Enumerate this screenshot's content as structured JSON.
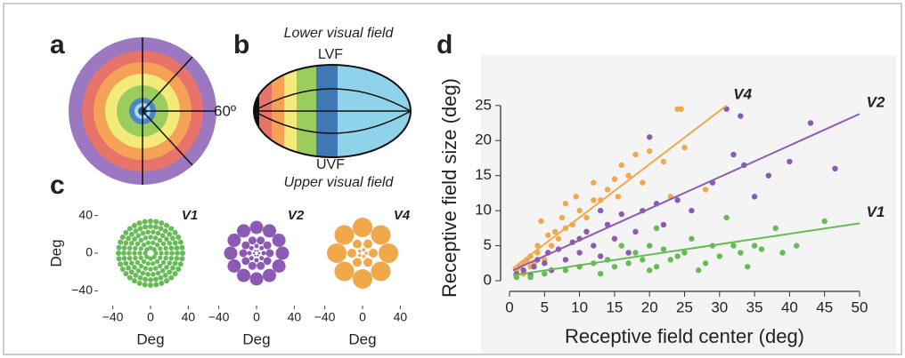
{
  "panel_labels": [
    "a",
    "b",
    "c",
    "d"
  ],
  "panel_a": {
    "angle_label": "60º"
  },
  "panel_b": {
    "top_label": "Lower visual field",
    "lvf": "LVF",
    "uvf": "UVF",
    "bottom_label": "Upper visual field"
  },
  "chart_data": [
    {
      "type": "pattern",
      "title": "V1",
      "color": "#66bb55",
      "xlim": [
        -50,
        50
      ],
      "ylim": [
        -50,
        50
      ],
      "xticks": [
        {
          "value": -40,
          "label": "−40"
        },
        0,
        40
      ],
      "yticks": [
        {
          "value": -40,
          "label": "−40"
        },
        0,
        40
      ],
      "xlabel": "Deg",
      "ylabel": "Deg"
    },
    {
      "type": "pattern",
      "title": "V2",
      "color": "#8b5ab5",
      "xlim": [
        -50,
        50
      ],
      "ylim": [
        -50,
        50
      ],
      "xticks": [
        {
          "value": -40,
          "label": "−40"
        },
        0,
        40
      ],
      "xlabel": "Deg"
    },
    {
      "type": "pattern",
      "title": "V4",
      "color": "#f0a84b",
      "xlim": [
        -50,
        50
      ],
      "ylim": [
        -50,
        50
      ],
      "xticks": [
        {
          "value": -40,
          "label": "−40"
        },
        0,
        40
      ],
      "xlabel": "Deg"
    },
    {
      "type": "scatter",
      "xlabel": "Receptive field center (deg)",
      "ylabel": "Receptive field size (deg)",
      "xlim": [
        0,
        50
      ],
      "ylim": [
        -0.5,
        27
      ],
      "xticks": [
        0,
        5,
        10,
        15,
        20,
        25,
        30,
        35,
        40,
        45,
        50
      ],
      "yticks": [
        0,
        5,
        10,
        15,
        20,
        25
      ],
      "series": [
        {
          "name": "V4",
          "color": "#f0a84b",
          "x": [
            1,
            1.5,
            2,
            2,
            2.5,
            3,
            3,
            3.5,
            4,
            4,
            4.5,
            5,
            5.5,
            6,
            6.5,
            7,
            7.5,
            8,
            8,
            9,
            9.5,
            10,
            11,
            12,
            13,
            14,
            15,
            15.5,
            16,
            17,
            18,
            19,
            20,
            22,
            24,
            24.5,
            25,
            28,
            23,
            12
          ],
          "values": [
            1.5,
            2,
            2.5,
            1,
            3,
            2,
            3.5,
            2.5,
            4,
            5,
            8.5,
            3,
            6.5,
            5,
            7,
            6,
            9,
            7.5,
            11,
            8,
            12,
            10,
            9,
            14,
            11.5,
            13,
            14.5,
            12,
            16.5,
            15,
            18,
            14,
            18.5,
            17,
            24.5,
            24.5,
            19,
            13,
            12,
            11.5
          ],
          "fit_x": [
            0.5,
            31
          ],
          "fit_y": [
            1.8,
            25
          ]
        },
        {
          "name": "V2",
          "color": "#8b5ab5",
          "x": [
            1,
            2,
            3,
            3.5,
            4,
            5,
            5.5,
            6,
            7,
            8,
            9,
            10,
            11,
            12,
            13,
            14,
            15,
            16,
            17,
            18,
            19,
            20,
            21,
            22,
            24,
            26,
            29,
            31,
            32,
            33,
            33.5,
            35,
            37,
            40,
            43,
            46.5,
            10,
            13
          ],
          "values": [
            1,
            1.5,
            0.8,
            2,
            3,
            2.5,
            4,
            1.5,
            4.5,
            3,
            5.5,
            4,
            7,
            5,
            3.5,
            8,
            6,
            9.5,
            4,
            7,
            10,
            20.5,
            11,
            8,
            11.5,
            10,
            14,
            24.5,
            18,
            23.5,
            16.5,
            12,
            15,
            17,
            22.5,
            16,
            6,
            10
          ],
          "fit_x": [
            0.5,
            50
          ],
          "fit_y": [
            1.5,
            23.8
          ]
        },
        {
          "name": "V1",
          "color": "#66bb55",
          "x": [
            1,
            3,
            5,
            8,
            10,
            12,
            13,
            14,
            15,
            16,
            17,
            18,
            19,
            20,
            20,
            21,
            22,
            23,
            24,
            25,
            26,
            27,
            28,
            29,
            30,
            32,
            33,
            34,
            35,
            36,
            38,
            39,
            41,
            45,
            31,
            21
          ],
          "values": [
            0.5,
            0.5,
            1,
            1.5,
            2,
            2.5,
            1,
            3,
            2,
            5,
            2.5,
            4,
            3,
            1.5,
            5,
            2,
            4.5,
            3,
            3.5,
            4,
            6,
            1.5,
            2.5,
            5,
            3.5,
            5,
            4,
            2,
            5,
            4.5,
            7.5,
            4,
            5,
            8.5,
            9,
            7.5
          ],
          "fit_x": [
            0.5,
            50
          ],
          "fit_y": [
            0.8,
            8.2
          ]
        }
      ]
    }
  ]
}
